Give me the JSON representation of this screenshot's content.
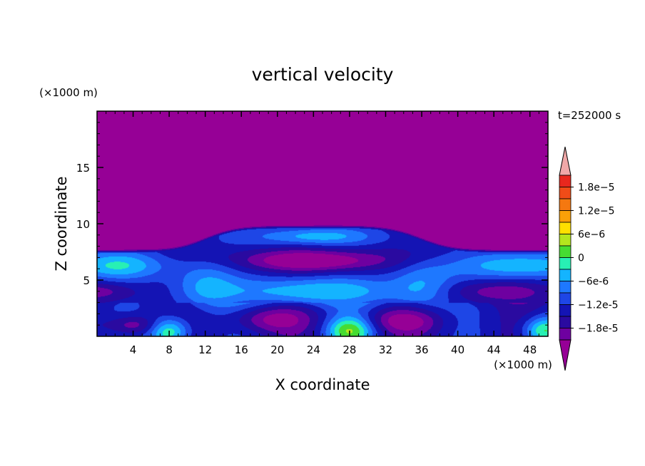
{
  "chart_data": {
    "type": "heatmap",
    "title": "vertical velocity",
    "xlabel": "X coordinate",
    "ylabel": "Z coordinate",
    "x_unit": "(×1000 m)",
    "y_unit": "(×1000 m)",
    "time_label": "t=252000 s",
    "xlim": [
      0,
      50
    ],
    "ylim": [
      0,
      20
    ],
    "x_ticks": [
      "4",
      "8",
      "12",
      "16",
      "20",
      "24",
      "28",
      "32",
      "36",
      "40",
      "44",
      "48"
    ],
    "y_ticks": [
      "5",
      "10",
      "15"
    ],
    "colorbar": {
      "min": -2.1e-05,
      "max": 2.1e-05,
      "step": 3e-06,
      "labels": [
        "1.8e-5",
        "1.2e-5",
        "6e-6",
        "0",
        "-6e-6",
        "-1.2e-5",
        "-1.8e-5"
      ],
      "colors": [
        "#f0a8a8",
        "#e8281e",
        "#f04c18",
        "#f57810",
        "#faa008",
        "#ffe000",
        "#b4e61e",
        "#46dc32",
        "#28f0b4",
        "#14b4ff",
        "#1e78ff",
        "#1e46e6",
        "#1414b4",
        "#2a0aa0",
        "#6e00a0",
        "#960096"
      ]
    },
    "features": [
      {
        "kind": "lower_bound_of_field",
        "value": "-2.1e-5 and below above z≈8 (×1000 m)"
      },
      {
        "kind": "max",
        "x": 8,
        "z": 0.5,
        "value": 3e-06
      },
      {
        "kind": "max",
        "x": 28,
        "z": 0.6,
        "value": 3e-06
      },
      {
        "kind": "max",
        "x": 49,
        "z": 0.6,
        "value": 0
      },
      {
        "kind": "max",
        "x": 24,
        "z": 4,
        "value": -3e-06
      },
      {
        "kind": "max",
        "x": 2,
        "z": 6.2,
        "value": -3e-06
      },
      {
        "kind": "max",
        "x": 47,
        "z": 6.2,
        "value": -3e-06
      },
      {
        "kind": "min",
        "x": 24,
        "z": 6.6,
        "value": -2.1e-05
      },
      {
        "kind": "min",
        "x": 34,
        "z": 1.3,
        "value": -1.8e-05
      },
      {
        "kind": "min",
        "x": 44,
        "z": 4,
        "value": -1.7e-05
      }
    ]
  }
}
